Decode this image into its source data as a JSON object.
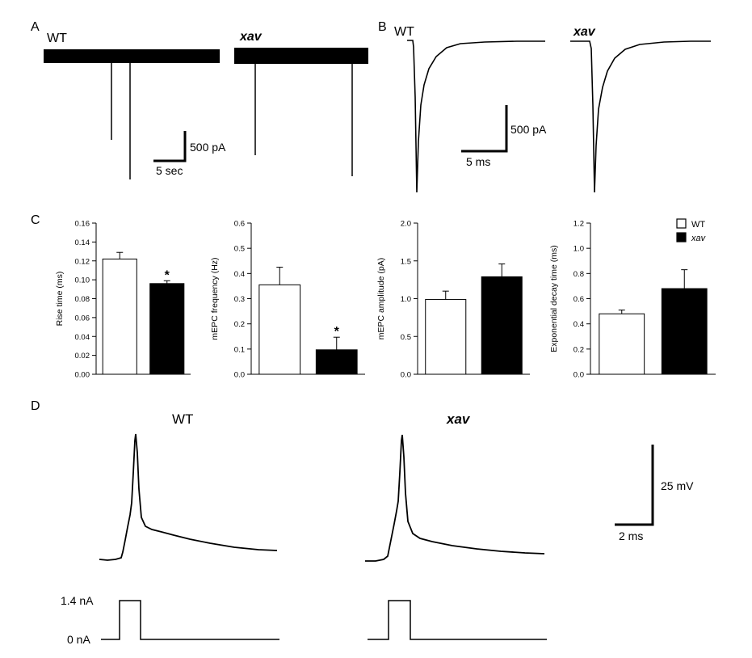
{
  "panels": {
    "A": "A",
    "B": "B",
    "C": "C",
    "D": "D"
  },
  "panel_A": {
    "wt_label": "WT",
    "xav_label": "xav",
    "scale_y": "500 pA",
    "scale_x": "5 sec"
  },
  "panel_B": {
    "wt_label": "WT",
    "xav_label": "xav",
    "scale_y": "500 pA",
    "scale_x": "5 ms"
  },
  "panel_D": {
    "wt_label": "WT",
    "xav_label": "xav",
    "scale_y": "25 mV",
    "scale_x": "2 ms",
    "stim_high": "1.4 nA",
    "stim_low": "0 nA"
  },
  "legend": [
    {
      "label": "WT",
      "color": "#ffffff",
      "italic": false
    },
    {
      "label": "xav",
      "color": "#000000",
      "italic": true
    }
  ],
  "chart_data": [
    {
      "type": "bar",
      "categories": [
        "WT",
        "xav"
      ],
      "values": [
        0.122,
        0.096
      ],
      "errors": [
        0.007,
        0.003
      ],
      "colors": [
        "#ffffff",
        "#000000"
      ],
      "ylabel": "Rise time (ms)",
      "ylim": [
        0,
        0.16
      ],
      "yticks": [
        "0.00",
        "0.02",
        "0.04",
        "0.06",
        "0.08",
        "0.10",
        "0.12",
        "0.14",
        "0.16"
      ],
      "annotations": [
        "",
        "*"
      ]
    },
    {
      "type": "bar",
      "categories": [
        "WT",
        "xav"
      ],
      "values": [
        0.355,
        0.097
      ],
      "errors": [
        0.07,
        0.05
      ],
      "colors": [
        "#ffffff",
        "#000000"
      ],
      "ylabel": "mEPC frequency (Hz)",
      "ylim": [
        0,
        0.6
      ],
      "yticks": [
        "0.0",
        "0.1",
        "0.2",
        "0.3",
        "0.4",
        "0.5",
        "0.6"
      ],
      "annotations": [
        "",
        "*"
      ]
    },
    {
      "type": "bar",
      "categories": [
        "WT",
        "xav"
      ],
      "values": [
        0.99,
        1.29
      ],
      "errors": [
        0.11,
        0.17
      ],
      "colors": [
        "#ffffff",
        "#000000"
      ],
      "ylabel": "mEPC amplitude (pA)",
      "ylim": [
        0,
        2.0
      ],
      "yticks": [
        "0.0",
        "0.5",
        "1.0",
        "1.5",
        "2.0"
      ],
      "annotations": [
        "",
        ""
      ]
    },
    {
      "type": "bar",
      "categories": [
        "WT",
        "xav"
      ],
      "values": [
        0.48,
        0.68
      ],
      "errors": [
        0.03,
        0.15
      ],
      "colors": [
        "#ffffff",
        "#000000"
      ],
      "ylabel": "Exponential decay time (ms)",
      "ylim": [
        0,
        1.2
      ],
      "yticks": [
        "0.0",
        "0.2",
        "0.4",
        "0.6",
        "0.8",
        "1.0",
        "1.2"
      ],
      "annotations": [
        "",
        ""
      ]
    }
  ]
}
